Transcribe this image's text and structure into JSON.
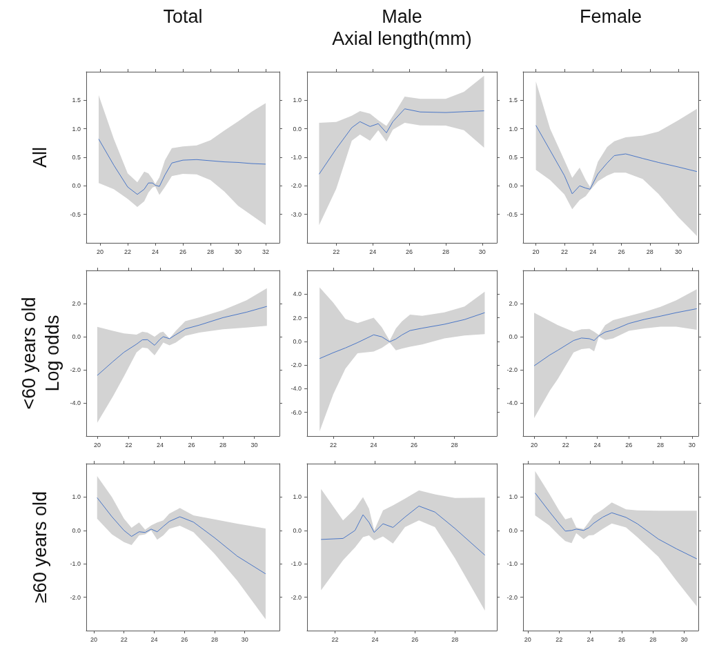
{
  "chart_data": [
    {
      "type": "line",
      "title": "Total",
      "subtitle": "All",
      "xlim": [
        19,
        33
      ],
      "xticks": [
        20,
        22,
        24,
        26,
        28,
        30,
        32
      ],
      "ylim": [
        -1,
        2
      ],
      "yticks": [
        -0.5,
        {
          "value": 0,
          "label": "0.0"
        },
        0.5,
        {
          "value": 1,
          "label": "1.0"
        },
        1.5
      ],
      "x": [
        19.9,
        21,
        22,
        22.7,
        23.2,
        23.5,
        23.8,
        24.0,
        24.3,
        24.7,
        25.2,
        26,
        27,
        28,
        29,
        30,
        31,
        32
      ],
      "series": [
        {
          "color": "#4a76c6",
          "values": [
            0.82,
            0.36,
            -0.02,
            -0.15,
            -0.06,
            0.05,
            0.05,
            0.01,
            -0.01,
            0.19,
            0.4,
            0.45,
            0.46,
            0.44,
            0.42,
            0.41,
            0.39,
            0.38
          ],
          "upper": [
            1.59,
            0.82,
            0.22,
            0.06,
            0.25,
            0.22,
            0.12,
            0.03,
            0.15,
            0.45,
            0.66,
            0.69,
            0.71,
            0.8,
            0.97,
            1.13,
            1.3,
            1.45
          ],
          "lower": [
            0.05,
            -0.06,
            -0.23,
            -0.37,
            -0.27,
            -0.12,
            -0.03,
            -0.01,
            -0.16,
            -0.02,
            0.17,
            0.21,
            0.2,
            0.1,
            -0.1,
            -0.35,
            -0.52,
            -0.69
          ]
        }
      ]
    },
    {
      "type": "line",
      "title": "Male",
      "xlabel": "Axial length(mm)",
      "xlim": [
        20.4,
        30.8
      ],
      "xticks": [
        22,
        24,
        26,
        28,
        30
      ],
      "ylim": [
        -4,
        2
      ],
      "yticks": [
        {
          "value": -3,
          "label": "-3.0"
        },
        {
          "value": -2,
          "label": "-2.0"
        },
        {
          "value": -1,
          "label": "-1.0"
        },
        {
          "value": 0,
          "label": "0.0"
        },
        {
          "value": 1,
          "label": "1.0"
        }
      ],
      "x": [
        21.06,
        22,
        22.85,
        23.3,
        23.85,
        24.3,
        24.75,
        25.1,
        25.75,
        26.6,
        28,
        29,
        30.1
      ],
      "series": [
        {
          "color": "#4a76c6",
          "values": [
            -1.59,
            -0.7,
            0.04,
            0.25,
            0.08,
            0.18,
            -0.14,
            0.25,
            0.7,
            0.59,
            0.57,
            0.6,
            0.63
          ],
          "upper": [
            0.21,
            0.24,
            0.46,
            0.62,
            0.53,
            0.3,
            0.1,
            0.45,
            1.13,
            1.05,
            1.05,
            1.3,
            1.86
          ],
          "lower": [
            -3.38,
            -2.1,
            -0.42,
            -0.2,
            -0.42,
            -0.05,
            -0.45,
            -0.03,
            0.21,
            0.12,
            0.11,
            -0.05,
            -0.66
          ]
        }
      ]
    },
    {
      "type": "line",
      "title": "Female",
      "xlim": [
        19.1,
        31.4
      ],
      "xticks": [
        20,
        22,
        24,
        26,
        28,
        30
      ],
      "ylim": [
        -1,
        2
      ],
      "yticks": [
        -0.5,
        {
          "value": 0,
          "label": "0.0"
        },
        0.5,
        {
          "value": 1,
          "label": "1.0"
        },
        1.5
      ],
      "x": [
        20,
        21,
        22,
        22.55,
        23.07,
        23.5,
        23.8,
        24.35,
        25,
        25.5,
        26.3,
        27.5,
        28.6,
        30,
        31.3
      ],
      "series": [
        {
          "color": "#4a76c6",
          "values": [
            1.06,
            0.62,
            0.18,
            -0.14,
            0.0,
            -0.04,
            -0.06,
            0.21,
            0.4,
            0.53,
            0.56,
            0.48,
            0.41,
            0.33,
            0.25
          ],
          "upper": [
            1.83,
            1.0,
            0.45,
            0.14,
            0.32,
            0.1,
            -0.02,
            0.42,
            0.68,
            0.78,
            0.85,
            0.88,
            0.95,
            1.15,
            1.35
          ],
          "lower": [
            0.28,
            0.1,
            -0.15,
            -0.41,
            -0.25,
            -0.18,
            -0.08,
            0.08,
            0.18,
            0.23,
            0.23,
            0.12,
            -0.14,
            -0.55,
            -0.88
          ]
        }
      ]
    },
    {
      "type": "line",
      "subtitle": "<60 years old",
      "ylabel": "Log odds",
      "xlim": [
        19.3,
        31.6
      ],
      "xticks": [
        20,
        22,
        24,
        26,
        28,
        30
      ],
      "ylim": [
        -6,
        4
      ],
      "yticks": [
        {
          "value": -4,
          "label": "-4.0"
        },
        {
          "value": -2,
          "label": "-2.0"
        },
        {
          "value": 0,
          "label": "0.0"
        },
        {
          "value": 2,
          "label": "2.0"
        }
      ],
      "x": [
        20,
        21,
        21.7,
        22.5,
        22.87,
        23.2,
        23.65,
        24.0,
        24.2,
        24.6,
        25,
        25.6,
        26.5,
        28,
        29.5,
        30.8
      ],
      "series": [
        {
          "color": "#4a76c6",
          "values": [
            -2.34,
            -1.5,
            -0.94,
            -0.45,
            -0.19,
            -0.18,
            -0.52,
            -0.15,
            0.0,
            -0.12,
            0.12,
            0.47,
            0.7,
            1.15,
            1.48,
            1.83
          ],
          "upper": [
            0.59,
            0.35,
            0.2,
            0.12,
            0.3,
            0.25,
            0.0,
            0.25,
            0.3,
            -0.1,
            0.35,
            0.94,
            1.17,
            1.6,
            2.2,
            2.93
          ],
          "lower": [
            -5.2,
            -3.6,
            -2.4,
            -0.95,
            -0.66,
            -0.7,
            -1.12,
            -0.65,
            -0.35,
            -0.52,
            -0.35,
            0.05,
            0.25,
            0.45,
            0.55,
            0.66
          ]
        }
      ]
    },
    {
      "type": "line",
      "xlim": [
        20.7,
        30.1
      ],
      "xticks": [
        22,
        24,
        26,
        28
      ],
      "ylim": [
        -8,
        6
      ],
      "yticks": [
        {
          "value": -6,
          "label": "-6.0"
        },
        {
          "value": -4,
          "label": "-4.0"
        },
        {
          "value": -2,
          "label": "-2.0"
        },
        {
          "value": 0,
          "label": "0.0"
        },
        {
          "value": 2,
          "label": "2.0"
        },
        {
          "value": 4,
          "label": "4.0"
        }
      ],
      "x": [
        21.32,
        22,
        22.6,
        23.2,
        24,
        24.4,
        24.79,
        25.1,
        25.4,
        25.8,
        26.4,
        27.5,
        28.5,
        29.5
      ],
      "series": [
        {
          "color": "#4a76c6",
          "values": [
            -1.45,
            -0.95,
            -0.55,
            -0.1,
            0.56,
            0.39,
            -0.03,
            0.2,
            0.55,
            0.92,
            1.12,
            1.45,
            1.85,
            2.43
          ],
          "upper": [
            4.57,
            3.28,
            1.9,
            1.55,
            2.0,
            1.2,
            0.07,
            1.1,
            1.7,
            2.27,
            2.17,
            2.45,
            2.95,
            4.21
          ],
          "lower": [
            -7.6,
            -4.45,
            -2.3,
            -1.0,
            -0.85,
            -0.55,
            -0.1,
            -0.75,
            -0.6,
            -0.45,
            -0.26,
            0.25,
            0.5,
            0.62
          ]
        }
      ]
    },
    {
      "type": "line",
      "xlim": [
        19.3,
        30.4
      ],
      "xticks": [
        20,
        22,
        24,
        26,
        28,
        30
      ],
      "ylim": [
        -6,
        4
      ],
      "yticks": [
        {
          "value": -4,
          "label": "-4.0"
        },
        {
          "value": -2,
          "label": "-2.0"
        },
        {
          "value": 0,
          "label": "0.0"
        },
        {
          "value": 2,
          "label": "2.0"
        }
      ],
      "x": [
        20,
        21,
        21.5,
        22.5,
        23,
        23.5,
        23.8,
        24.1,
        24.5,
        25,
        26,
        27,
        28,
        29,
        30.3
      ],
      "series": [
        {
          "color": "#4a76c6",
          "values": [
            -1.76,
            -1.1,
            -0.82,
            -0.23,
            -0.08,
            -0.12,
            -0.23,
            0.05,
            0.28,
            0.4,
            0.8,
            1.05,
            1.24,
            1.45,
            1.69
          ],
          "upper": [
            1.45,
            0.95,
            0.7,
            0.3,
            0.45,
            0.47,
            0.3,
            0.1,
            0.7,
            1.0,
            1.25,
            1.5,
            1.8,
            2.2,
            2.86
          ],
          "lower": [
            -4.92,
            -3.25,
            -2.55,
            -0.95,
            -0.75,
            -0.7,
            -0.89,
            0.0,
            -0.2,
            -0.1,
            0.35,
            0.5,
            0.6,
            0.6,
            0.42
          ]
        }
      ]
    },
    {
      "type": "line",
      "subtitle": "≥60 years old",
      "xlim": [
        19.5,
        32.3
      ],
      "xticks": [
        20,
        22,
        24,
        26,
        28,
        30
      ],
      "ylim": [
        -3,
        2
      ],
      "yticks": [
        {
          "value": -2,
          "label": "-2.0"
        },
        {
          "value": -1,
          "label": "-1.0"
        },
        {
          "value": 0,
          "label": "0.0"
        },
        {
          "value": 1,
          "label": "1.0"
        }
      ],
      "x": [
        20.22,
        21.2,
        22.0,
        22.5,
        23.0,
        23.4,
        23.8,
        24.2,
        24.6,
        25.0,
        25.7,
        26.6,
        28,
        29.5,
        31.38
      ],
      "series": [
        {
          "color": "#4a76c6",
          "values": [
            0.98,
            0.41,
            0.0,
            -0.18,
            -0.04,
            -0.06,
            0.04,
            -0.04,
            0.12,
            0.27,
            0.41,
            0.25,
            -0.22,
            -0.77,
            -1.3
          ],
          "upper": [
            1.63,
            1.0,
            0.35,
            0.08,
            0.24,
            0.02,
            0.15,
            0.24,
            0.3,
            0.5,
            0.67,
            0.45,
            0.33,
            0.2,
            0.06
          ],
          "lower": [
            0.35,
            -0.12,
            -0.35,
            -0.44,
            -0.15,
            -0.12,
            0.0,
            -0.28,
            -0.15,
            0.05,
            0.14,
            -0.05,
            -0.7,
            -1.5,
            -2.66
          ]
        }
      ]
    },
    {
      "type": "line",
      "xlim": [
        20.6,
        30.1
      ],
      "xticks": [
        22,
        24,
        26,
        28
      ],
      "ylim": [
        -3,
        2
      ],
      "yticks": [
        {
          "value": -2,
          "label": "-2.0"
        },
        {
          "value": -1,
          "label": "-1.0"
        },
        {
          "value": 0,
          "label": "0.0"
        },
        {
          "value": 1,
          "label": "1.0"
        }
      ],
      "x": [
        21.3,
        22.4,
        23.0,
        23.4,
        23.7,
        23.96,
        24.4,
        24.9,
        25.5,
        26.2,
        27,
        28,
        29.5
      ],
      "series": [
        {
          "color": "#4a76c6",
          "values": [
            -0.27,
            -0.24,
            0.0,
            0.47,
            0.24,
            -0.06,
            0.2,
            0.09,
            0.4,
            0.73,
            0.55,
            0.06,
            -0.74
          ],
          "upper": [
            1.24,
            0.3,
            0.65,
            1.0,
            0.65,
            0.0,
            0.6,
            0.75,
            0.95,
            1.2,
            1.08,
            0.97,
            0.98
          ],
          "lower": [
            -1.79,
            -0.89,
            -0.51,
            -0.2,
            -0.15,
            -0.3,
            -0.18,
            -0.39,
            0.1,
            0.3,
            0.1,
            -0.83,
            -2.4
          ]
        }
      ]
    },
    {
      "type": "line",
      "xlim": [
        19.7,
        30.9
      ],
      "xticks": [
        20,
        22,
        24,
        26,
        28,
        30
      ],
      "ylim": [
        -3,
        2
      ],
      "yticks": [
        {
          "value": -2,
          "label": "-2.0"
        },
        {
          "value": -1,
          "label": "-1.0"
        },
        {
          "value": 0,
          "label": "0.0"
        },
        {
          "value": 1,
          "label": "1.0"
        }
      ],
      "x": [
        20.47,
        21.37,
        22.0,
        22.4,
        22.8,
        23.1,
        23.57,
        23.9,
        24.2,
        24.8,
        25.37,
        26.28,
        27,
        28.35,
        29.5,
        30.8
      ],
      "series": [
        {
          "color": "#4a76c6",
          "values": [
            1.12,
            0.57,
            0.2,
            -0.02,
            0.0,
            0.04,
            0.0,
            0.08,
            0.21,
            0.4,
            0.53,
            0.39,
            0.2,
            -0.26,
            -0.55,
            -0.85
          ],
          "upper": [
            1.78,
            1.1,
            0.6,
            0.33,
            0.39,
            0.09,
            0.04,
            0.25,
            0.45,
            0.63,
            0.84,
            0.63,
            0.6,
            0.59,
            0.59,
            0.59
          ],
          "lower": [
            0.45,
            0.15,
            -0.15,
            -0.32,
            -0.38,
            -0.08,
            -0.26,
            -0.15,
            -0.14,
            0.05,
            0.21,
            0.09,
            -0.2,
            -0.79,
            -1.5,
            -2.27
          ]
        }
      ]
    }
  ]
}
